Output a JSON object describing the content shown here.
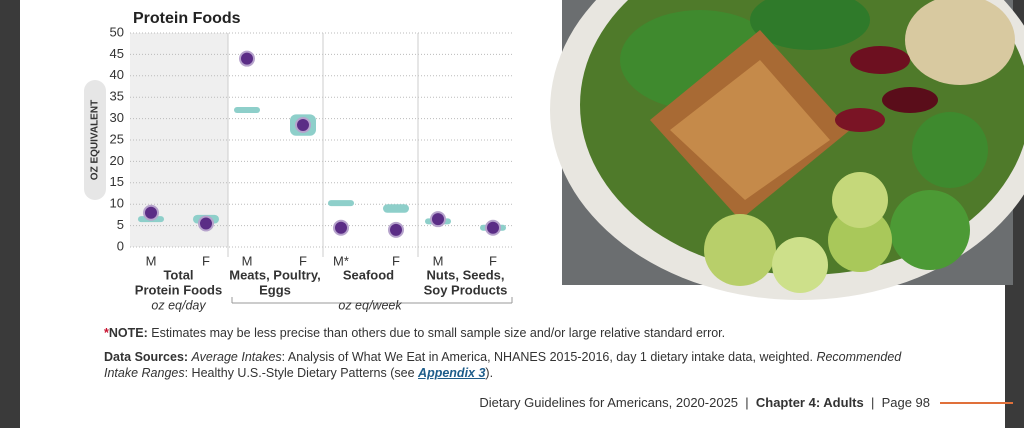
{
  "chart_data": {
    "type": "range-dot",
    "title": "Protein Foods",
    "y_label": "OZ EQUIVALENT",
    "categories": [
      "M",
      "F",
      "M",
      "F",
      "M*",
      "F",
      "M",
      "F"
    ],
    "values": [
      8,
      5.5,
      44,
      28.5,
      4.5,
      4,
      6.5,
      4.5
    ],
    "range_low": [
      6,
      5.5,
      31.5,
      26,
      10,
      8,
      5.5,
      4
    ],
    "range_high": [
      7,
      7.5,
      32.5,
      31,
      10.5,
      10,
      6.5,
      5
    ],
    "color": "#5b2d86",
    "range_color": "#8ecfca",
    "ylim": [
      0,
      50
    ],
    "yticks": [
      0,
      5,
      10,
      15,
      20,
      25,
      30,
      35,
      40,
      45,
      50
    ],
    "grid": true,
    "groups": [
      {
        "lines": [
          "Total",
          "Protein Foods"
        ],
        "unit": "oz eq/day"
      },
      {
        "lines": [
          "Meats, Poultry,",
          "Eggs"
        ]
      },
      {
        "lines": [
          "Seafood"
        ]
      },
      {
        "lines": [
          "Nuts, Seeds,",
          "Soy Products"
        ]
      }
    ],
    "shared_unit": "oz eq/week"
  },
  "note": {
    "marker": "*",
    "label": "NOTE:",
    "text": "Estimates may be less precise than others due to small sample size and/or large relative standard error."
  },
  "sources": [
    "Data Sources:",
    "Average Intakes",
    ": Analysis of What We Eat in America, NHANES 2015-2016, day 1 dietary intake data, weighted.",
    "Recommended Intake Ranges",
    ": Healthy U.S.-Style Dietary Patterns (see",
    "Appendix 3",
    ")."
  ],
  "footer": {
    "title": "Dietary Guidelines for Americans, 2020-2025",
    "chapter": "Chapter 4: Adults",
    "page": "Page 98"
  }
}
